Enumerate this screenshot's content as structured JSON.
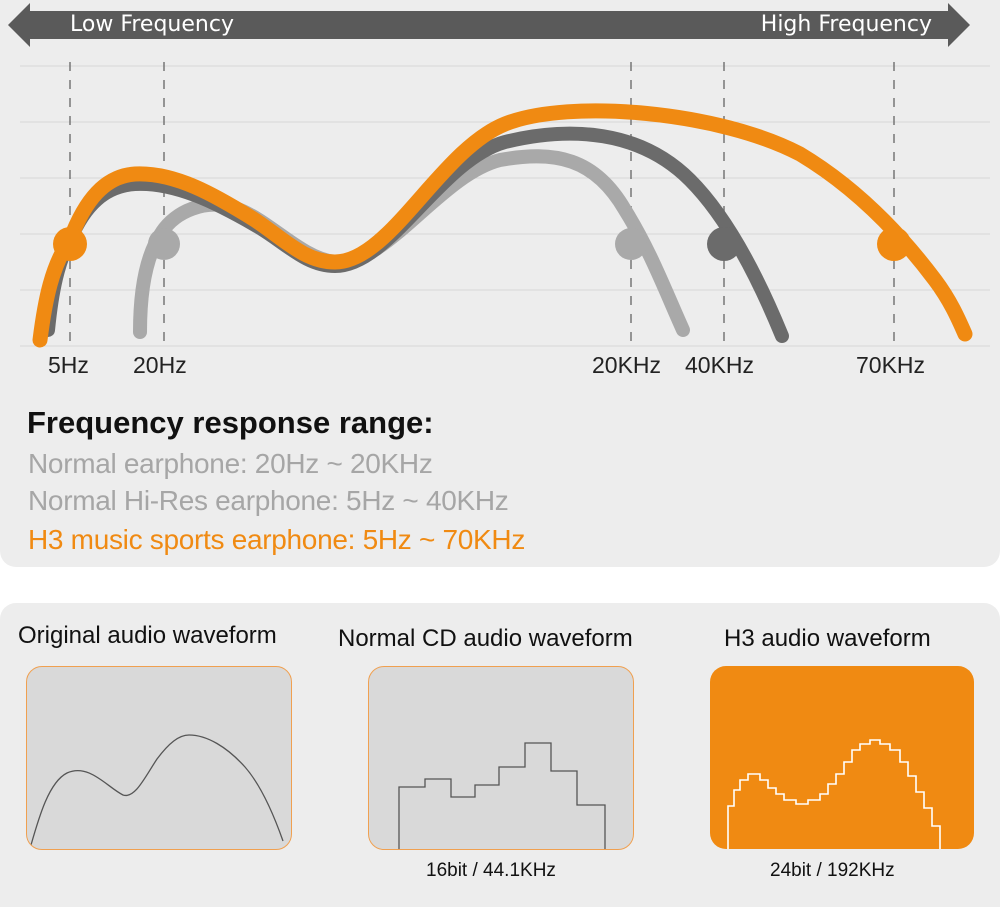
{
  "top": {
    "arrow": {
      "left_label": "Low Frequency",
      "right_label": "High Frequency"
    },
    "freq_labels": [
      "5Hz",
      "20Hz",
      "20KHz",
      "40KHz",
      "70KHz"
    ],
    "heading": "Frequency response range:",
    "specs": [
      {
        "text": "Normal earphone: 20Hz ~ 20KHz",
        "color": "#a6a6a6"
      },
      {
        "text": "Normal Hi-Res earphone: 5Hz ~ 40KHz",
        "color": "#a6a6a6"
      },
      {
        "text": "H3 music sports earphone: 5Hz ~ 70KHz",
        "color": "#f08a12"
      }
    ],
    "colors": {
      "orange": "#f08a12",
      "dark_gray": "#6b6b6b",
      "light_gray": "#a9a9a9",
      "arrow": "#5a5a5a"
    }
  },
  "bottom": {
    "waveforms": [
      {
        "title": "Original audio waveform",
        "caption": ""
      },
      {
        "title": "Normal CD audio waveform",
        "caption": "16bit / 44.1KHz"
      },
      {
        "title": "H3 audio waveform",
        "caption": "24bit / 192KHz"
      }
    ]
  }
}
